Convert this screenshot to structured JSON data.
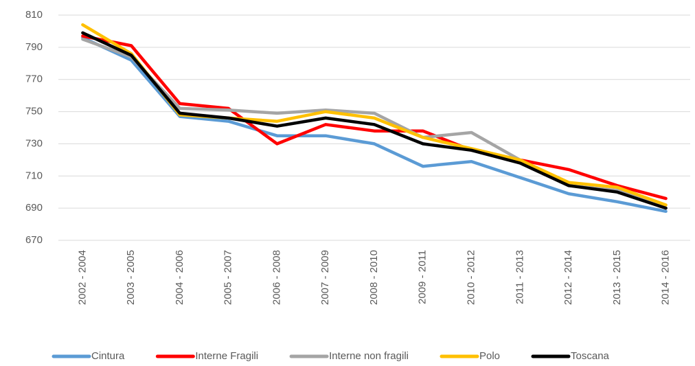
{
  "chart_data": {
    "type": "line",
    "categories": [
      "2002 - 2004",
      "2003 - 2005",
      "2004 - 2006",
      "2005 - 2007",
      "2006 - 2008",
      "2007 - 2009",
      "2008 - 2010",
      "2009 - 2011",
      "2010 - 2012",
      "2011 - 2013",
      "2012 - 2014",
      "2013 - 2015",
      "2014 - 2016"
    ],
    "series": [
      {
        "name": "Cintura",
        "color": "#5b9bd5",
        "values": [
          796,
          782,
          747,
          744,
          735,
          735,
          730,
          716,
          719,
          709,
          699,
          694,
          688
        ]
      },
      {
        "name": "Interne Fragili",
        "color": "#ff0000",
        "values": [
          797,
          791,
          755,
          752,
          730,
          742,
          738,
          738,
          726,
          720,
          714,
          704,
          696
        ]
      },
      {
        "name": "Interne non fragili",
        "color": "#a5a5a5",
        "values": [
          795,
          784,
          752,
          751,
          749,
          751,
          749,
          734,
          737,
          720,
          704,
          701,
          690
        ]
      },
      {
        "name": "Polo",
        "color": "#ffc000",
        "values": [
          804,
          786,
          748,
          746,
          744,
          750,
          746,
          734,
          727,
          720,
          706,
          703,
          692
        ]
      },
      {
        "name": "Toscana",
        "color": "#000000",
        "values": [
          799,
          785,
          749,
          746,
          741,
          746,
          742,
          730,
          726,
          718,
          704,
          700,
          690
        ]
      }
    ],
    "ylim": [
      670,
      810
    ],
    "yticks": [
      670,
      690,
      710,
      730,
      750,
      770,
      790,
      810
    ],
    "grid": true,
    "legend": "bottom"
  }
}
